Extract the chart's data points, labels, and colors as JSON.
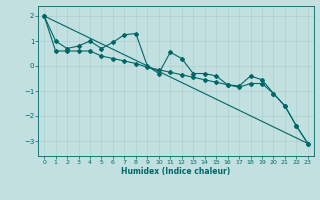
{
  "title": "",
  "xlabel": "Humidex (Indice chaleur)",
  "ylabel": "",
  "bg_color": "#c2e0e0",
  "grid_color": "#a8cccc",
  "line_color": "#006666",
  "xlim": [
    -0.5,
    23.5
  ],
  "ylim": [
    -3.6,
    2.4
  ],
  "yticks": [
    2,
    1,
    0,
    -1,
    -2,
    -3
  ],
  "xticks": [
    0,
    1,
    2,
    3,
    4,
    5,
    6,
    7,
    8,
    9,
    10,
    11,
    12,
    13,
    14,
    15,
    16,
    17,
    18,
    19,
    20,
    21,
    22,
    23
  ],
  "series1_x": [
    0,
    1,
    2,
    3,
    4,
    5,
    6,
    7,
    8,
    9,
    10,
    11,
    12,
    13,
    14,
    15,
    16,
    17,
    18,
    19,
    20,
    21,
    22,
    23
  ],
  "series1_y": [
    2.0,
    1.0,
    0.7,
    0.8,
    1.0,
    0.7,
    0.95,
    1.25,
    1.3,
    0.0,
    -0.3,
    0.55,
    0.3,
    -0.3,
    -0.3,
    -0.4,
    -0.75,
    -0.8,
    -0.4,
    -0.55,
    -1.1,
    -1.6,
    -2.4,
    -3.1
  ],
  "series2_x": [
    0,
    1,
    2,
    3,
    4,
    5,
    6,
    7,
    8,
    9,
    10,
    11,
    12,
    13,
    14,
    15,
    16,
    17,
    18,
    19,
    20,
    21,
    22,
    23
  ],
  "series2_y": [
    2.0,
    0.6,
    0.6,
    0.6,
    0.6,
    0.4,
    0.3,
    0.2,
    0.1,
    -0.05,
    -0.15,
    -0.25,
    -0.35,
    -0.45,
    -0.55,
    -0.65,
    -0.75,
    -0.85,
    -0.7,
    -0.7,
    -1.1,
    -1.6,
    -2.4,
    -3.1
  ],
  "series3_x": [
    0,
    23
  ],
  "series3_y": [
    2.0,
    -3.1
  ],
  "marker_size": 2.0,
  "line_width": 0.8,
  "tick_fontsize": 4.5,
  "xlabel_fontsize": 5.5
}
